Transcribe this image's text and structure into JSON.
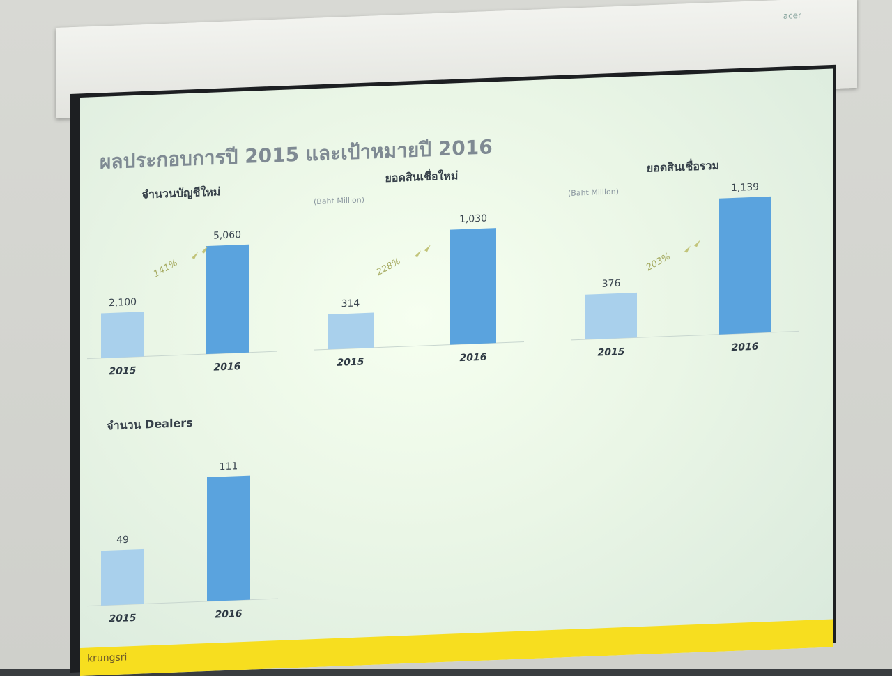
{
  "slide": {
    "title": "ผลประกอบการปี 2015 และเป้าหมายปี 2016",
    "projector_brand": "acer",
    "footer_logo": "krungsri"
  },
  "colors": {
    "bar_2015": "#a9d0ec",
    "bar_2016": "#5aa3de",
    "footer": "#f7de1f",
    "growth_text": "#a4a95e"
  },
  "chart_data": [
    {
      "type": "bar",
      "title": "จำนวนบัญชีใหม่",
      "unit": "",
      "categories": [
        "2015",
        "2016"
      ],
      "values": [
        2100,
        5060
      ],
      "value_labels": [
        "2,100",
        "5,060"
      ],
      "growth": "141%",
      "ylim": [
        0,
        5060
      ]
    },
    {
      "type": "bar",
      "title": "ยอดสินเชื่อใหม่",
      "unit": "(Baht Million)",
      "categories": [
        "2015",
        "2016"
      ],
      "values": [
        314,
        1030
      ],
      "value_labels": [
        "314",
        "1,030"
      ],
      "growth": "228%",
      "ylim": [
        0,
        1030
      ]
    },
    {
      "type": "bar",
      "title": "ยอดสินเชื่อรวม",
      "unit": "(Baht Million)",
      "categories": [
        "2015",
        "2016"
      ],
      "values": [
        376,
        1139
      ],
      "value_labels": [
        "376",
        "1,139"
      ],
      "growth": "203%",
      "ylim": [
        0,
        1139
      ]
    },
    {
      "type": "bar",
      "title": "จำนวน Dealers",
      "unit": "",
      "categories": [
        "2015",
        "2016"
      ],
      "values": [
        49,
        111
      ],
      "value_labels": [
        "49",
        "111"
      ],
      "growth": "",
      "ylim": [
        0,
        111
      ]
    }
  ]
}
